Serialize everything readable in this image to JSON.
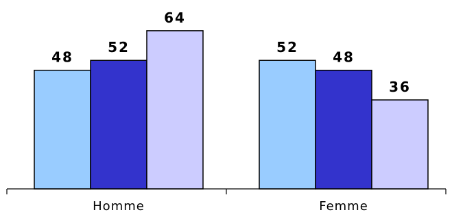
{
  "chart_data": {
    "type": "bar",
    "title": "",
    "xlabel": "",
    "ylabel": "",
    "categories": [
      "Homme",
      "Femme"
    ],
    "ylim": [
      0,
      72
    ],
    "grid": false,
    "legend": "none",
    "series": [
      {
        "values": [
          48,
          52
        ],
        "color": "#99ccff"
      },
      {
        "values": [
          52,
          48
        ],
        "color": "#3333cc"
      },
      {
        "values": [
          64,
          36
        ],
        "color": "#ccccff"
      }
    ],
    "data_labels": true,
    "colors": {
      "bar_stroke": "#000000",
      "axis": "#000000",
      "background": "#ffffff"
    }
  }
}
